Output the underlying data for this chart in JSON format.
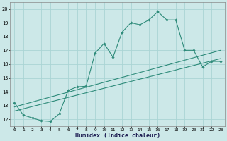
{
  "xlabel": "Humidex (Indice chaleur)",
  "line_color": "#2e8b7a",
  "bg_color": "#cce8e8",
  "grid_color": "#aad4d4",
  "xlim": [
    -0.5,
    23.5
  ],
  "ylim": [
    11.5,
    20.5
  ],
  "xticks": [
    0,
    1,
    2,
    3,
    4,
    5,
    6,
    7,
    8,
    9,
    10,
    11,
    12,
    13,
    14,
    15,
    16,
    17,
    18,
    19,
    20,
    21,
    22,
    23
  ],
  "yticks": [
    12,
    13,
    14,
    15,
    16,
    17,
    18,
    19,
    20
  ],
  "line1_x": [
    0,
    1,
    2,
    3,
    4,
    5,
    6,
    7,
    8,
    9,
    10,
    11,
    12,
    13,
    14,
    15,
    16,
    17,
    18,
    19,
    20,
    21,
    22,
    23
  ],
  "line1_y": [
    13.2,
    12.3,
    12.1,
    11.9,
    11.85,
    12.4,
    14.1,
    14.35,
    14.4,
    16.8,
    17.5,
    16.5,
    18.3,
    19.0,
    18.85,
    19.2,
    19.8,
    19.2,
    19.2,
    17.0,
    17.0,
    15.8,
    16.2,
    16.2
  ],
  "line2_x": [
    0,
    23
  ],
  "line2_y": [
    12.9,
    17.0
  ],
  "line3_x": [
    0,
    23
  ],
  "line3_y": [
    12.6,
    16.4
  ]
}
